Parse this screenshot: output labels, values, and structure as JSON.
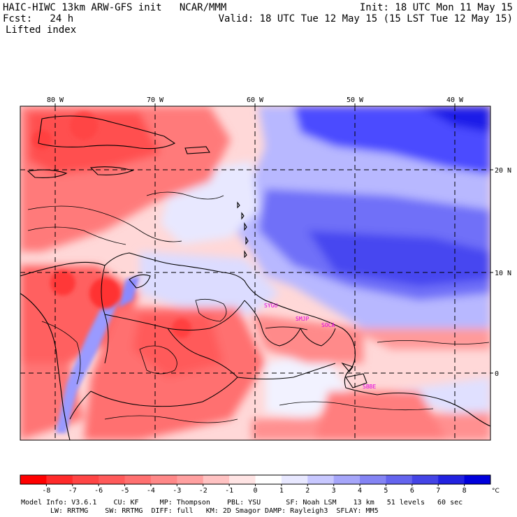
{
  "header": {
    "title_left": "HAIC-HIWC 13km ARW-GFS init   NCAR/MMM",
    "fcst_label": "Fcst:   24 h",
    "field": "Lifted index",
    "init": "Init: 18 UTC Mon 11 May 15",
    "valid": "Valid: 18 UTC Tue 12 May 15 (15 LST Tue 12 May 15)"
  },
  "map": {
    "lon_labels": [
      "80 W",
      "70 W",
      "60 W",
      "50 W",
      "40 W"
    ],
    "lat_labels": [
      "20 N",
      "10 N",
      "0"
    ],
    "station_labels": [
      "SYGU",
      "SMJP",
      "SOCA",
      "SBBE"
    ],
    "colors": {
      "unstable": "#f02828",
      "neutral": "#ffffff",
      "stable": "#1414e0",
      "station": "#e000e0"
    }
  },
  "colorbar": {
    "values": [
      -8,
      -7,
      -6,
      -5,
      -4,
      -3,
      -2,
      -1,
      0,
      1,
      2,
      3,
      4,
      5,
      6,
      7,
      8
    ],
    "unit": "°C",
    "colors": [
      "#ff0000",
      "#ff2a2a",
      "#ff4545",
      "#ff5a5a",
      "#ff7070",
      "#ff8888",
      "#ffa0a0",
      "#ffc2c2",
      "#ffe4e4",
      "#ffffff",
      "#e8e8ff",
      "#c8c8ff",
      "#a6a6fa",
      "#8484f4",
      "#6464ee",
      "#4444e6",
      "#2222e0",
      "#0000dc"
    ]
  },
  "footer": {
    "line1": "Model Info: V3.6.1    CU: KF     MP: Thompson    PBL: YSU      SF: Noah LSM    13 km   51 levels   60 sec",
    "line2": "LW: RRTMG    SW: RRTMG  DIFF: full   KM: 2D Smagor DAMP: Rayleigh3  SFLAY: MM5"
  }
}
